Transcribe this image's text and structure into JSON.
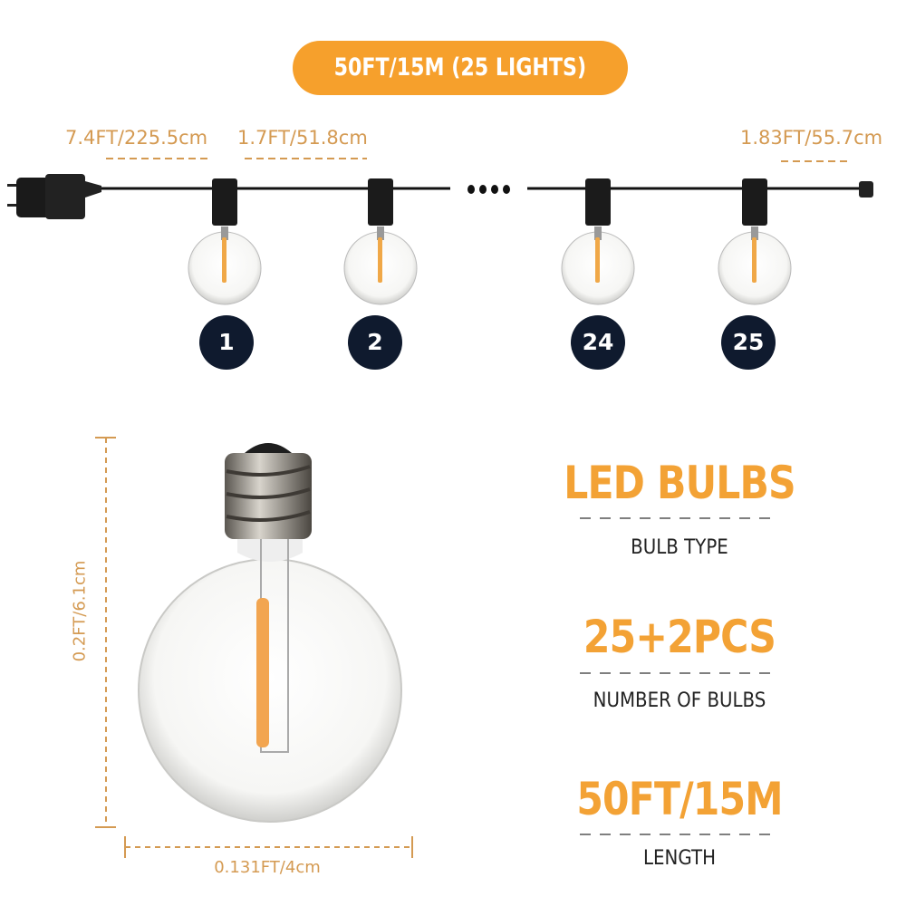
{
  "banner": {
    "text": "50FT/15M (25 LIGHTS)"
  },
  "segments": {
    "plug_to_first": "7.4FT/225.5cm",
    "spacing": "1.7FT/51.8cm",
    "last_to_end": "1.83FT/55.7cm"
  },
  "bulb_numbers": [
    "1",
    "2",
    "24",
    "25"
  ],
  "dimensions": {
    "height": "0.2FT/6.1cm",
    "width": "0.131FT/4cm"
  },
  "specs": [
    {
      "value": "LED BULBS",
      "label": "BULB TYPE"
    },
    {
      "value": "25+2PCS",
      "label": "NUMBER OF BULBS"
    },
    {
      "value": "50FT/15M",
      "label": "LENGTH"
    }
  ],
  "colors": {
    "accent": "#f6a02c",
    "label_text": "#d49a52",
    "badge": "#0f1a2e"
  }
}
